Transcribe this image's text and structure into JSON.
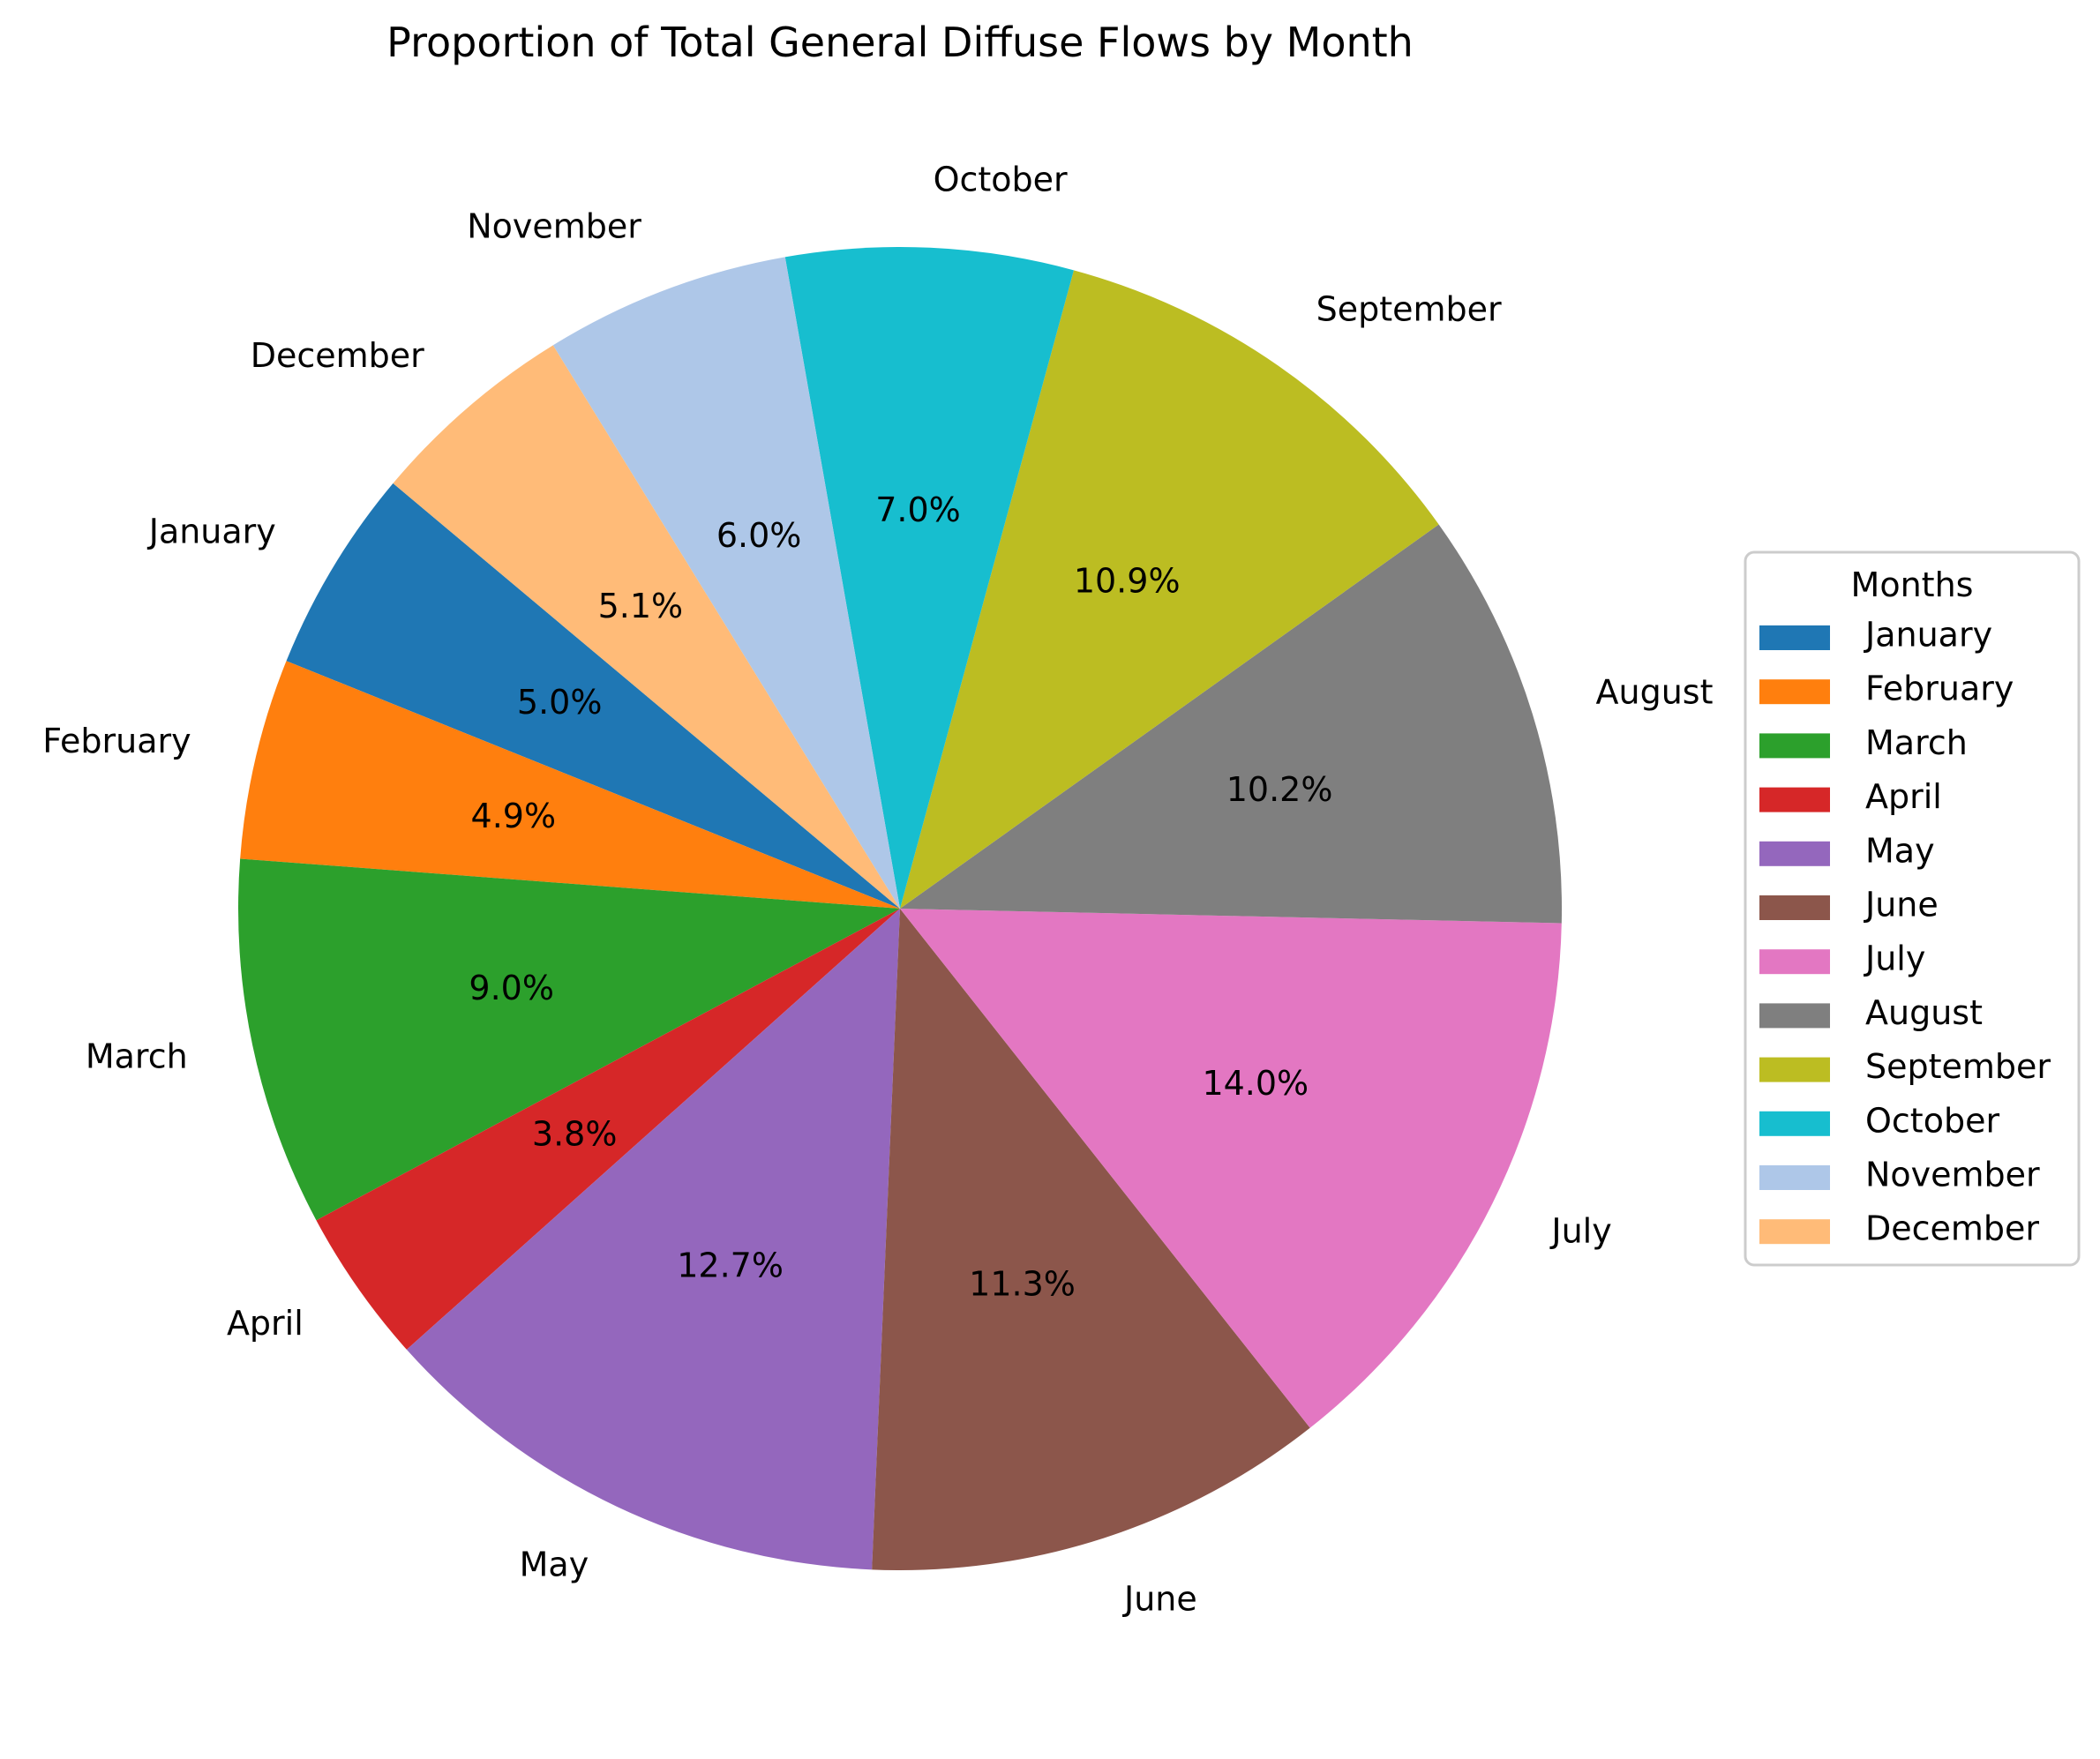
{
  "chart_data": {
    "type": "pie",
    "title": "Proportion of Total General Diffuse Flows by Month",
    "categories": [
      "January",
      "February",
      "March",
      "April",
      "May",
      "June",
      "July",
      "August",
      "September",
      "October",
      "November",
      "December"
    ],
    "values": [
      5.0,
      4.9,
      9.0,
      3.8,
      12.7,
      11.3,
      14.0,
      10.2,
      10.9,
      7.0,
      6.0,
      5.1
    ],
    "value_labels": [
      "5.0%",
      "4.9%",
      "9.0%",
      "3.8%",
      "12.7%",
      "11.3%",
      "14.0%",
      "10.2%",
      "10.9%",
      "7.0%",
      "6.0%",
      "5.1%"
    ],
    "colors": [
      "#1f77b4",
      "#ff7f0e",
      "#2ca02c",
      "#d62728",
      "#9467bd",
      "#8c564b",
      "#e377c2",
      "#7f7f7f",
      "#bcbd22",
      "#17becf",
      "#aec7e8",
      "#ffbb78"
    ],
    "start_angle_deg": 140,
    "direction": "counterclockwise",
    "legend": {
      "title": "Months",
      "placement": "center-right"
    }
  }
}
